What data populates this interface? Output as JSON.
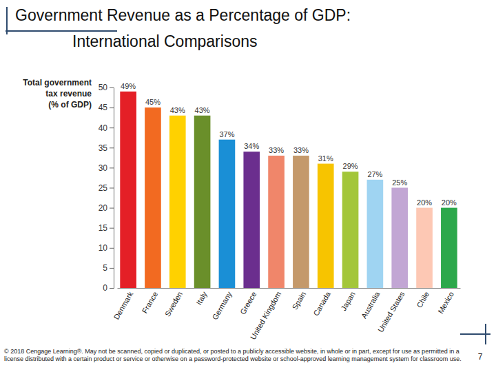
{
  "chart_data": {
    "type": "bar",
    "title": "Government Revenue as a Percentage of GDP:\nInternational Comparisons",
    "y_label": "Total government\ntax revenue\n(% of GDP)",
    "categories": [
      "Denmark",
      "France",
      "Sweden",
      "Italy",
      "Germany",
      "Greece",
      "United Kingdom",
      "Spain",
      "Canada",
      "Japan",
      "Australia",
      "United States",
      "Chile",
      "Mexico"
    ],
    "values": [
      49,
      45,
      43,
      43,
      37,
      34,
      33,
      33,
      31,
      29,
      27,
      25,
      20,
      20
    ],
    "value_labels": [
      "49%",
      "45%",
      "43%",
      "43%",
      "37%",
      "34%",
      "33%",
      "33%",
      "31%",
      "29%",
      "27%",
      "25%",
      "20%",
      "20%"
    ],
    "colors": [
      "#e41f26",
      "#f26a21",
      "#ffd100",
      "#6a8f2a",
      "#1a8fd6",
      "#6b2e8e",
      "#f0866a",
      "#c4996b",
      "#f7c400",
      "#a3c639",
      "#9fd4f2",
      "#c2a6d4",
      "#fdc8b4",
      "#2ca84b"
    ],
    "ylim": [
      0,
      50
    ],
    "yticks": [
      0,
      5,
      10,
      15,
      20,
      25,
      30,
      35,
      40,
      45,
      50
    ],
    "grid": false,
    "data_labels": true
  },
  "slide": {
    "footer": "© 2018 Cengage Learning®. May not be scanned, copied or duplicated, or posted to a publicly accessible website, in whole or in part, except for use as permitted in a license distributed with a certain product or service or otherwise on a password-protected website or school-approved learning management system for classroom use.",
    "page_number": "7"
  }
}
